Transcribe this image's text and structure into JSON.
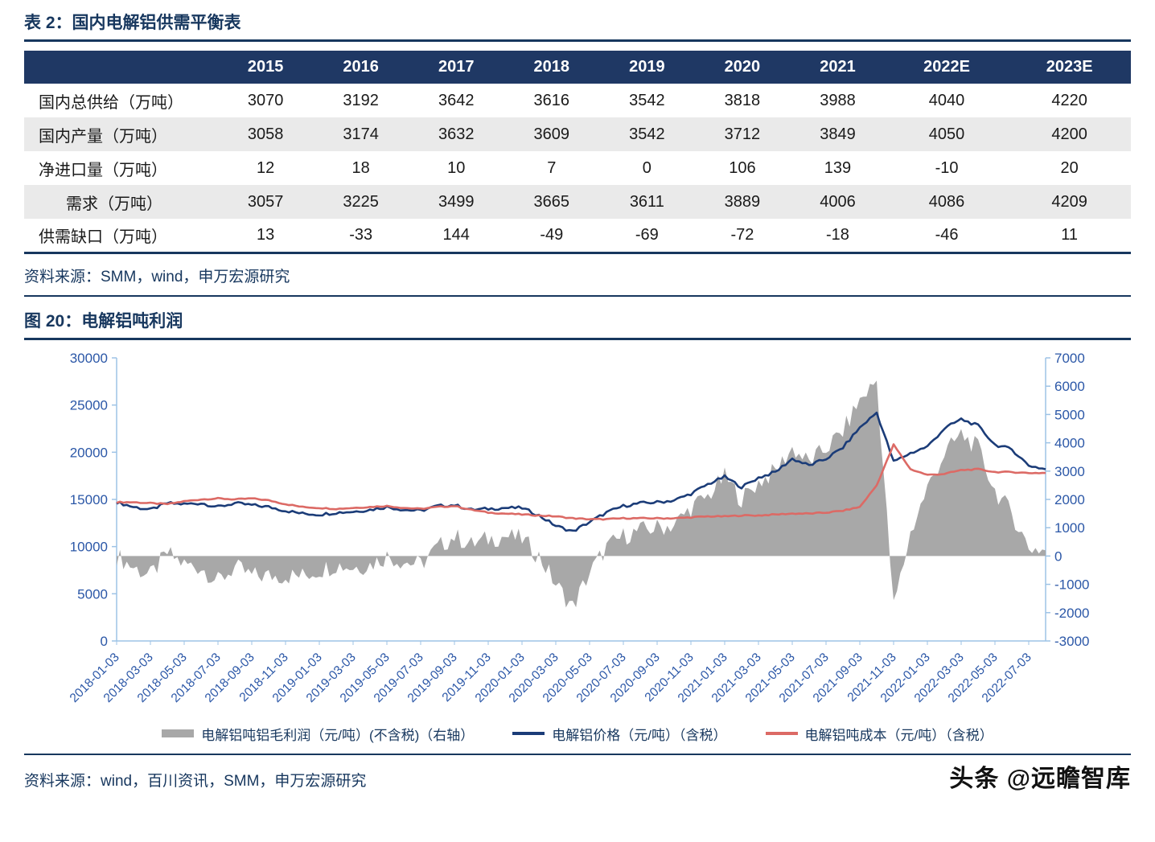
{
  "colors": {
    "navy": "#17375E",
    "header_bg": "#1F3864",
    "axis_blue": "#2B57A7",
    "axis_line": "#9DC3E6",
    "price_line": "#1B3C78",
    "cost_line": "#DC6A65",
    "profit_area": "#A8A8A8",
    "row_alt": "#EAEAEA"
  },
  "table": {
    "title": "表 2：国内电解铝供需平衡表",
    "columns": [
      "",
      "2015",
      "2016",
      "2017",
      "2018",
      "2019",
      "2020",
      "2021",
      "2022E",
      "2023E"
    ],
    "rows": [
      {
        "label": "国内总供给（万吨）",
        "indent": false,
        "values": [
          "3070",
          "3192",
          "3642",
          "3616",
          "3542",
          "3818",
          "3988",
          "4040",
          "4220"
        ]
      },
      {
        "label": "国内产量（万吨）",
        "indent": false,
        "values": [
          "3058",
          "3174",
          "3632",
          "3609",
          "3542",
          "3712",
          "3849",
          "4050",
          "4200"
        ]
      },
      {
        "label": "净进口量（万吨）",
        "indent": false,
        "values": [
          "12",
          "18",
          "10",
          "7",
          "0",
          "106",
          "139",
          "-10",
          "20"
        ]
      },
      {
        "label": "需求（万吨）",
        "indent": true,
        "values": [
          "3057",
          "3225",
          "3499",
          "3665",
          "3611",
          "3889",
          "4006",
          "4086",
          "4209"
        ]
      },
      {
        "label": "供需缺口（万吨）",
        "indent": false,
        "values": [
          "13",
          "-33",
          "144",
          "-49",
          "-69",
          "-72",
          "-18",
          "-46",
          "11"
        ]
      }
    ],
    "source": "资料来源：SMM，wind，申万宏源研究"
  },
  "figure": {
    "title": "图 20：电解铝吨利润",
    "source": "资料来源：wind，百川资讯，SMM，申万宏源研究"
  },
  "chart_data": {
    "type": "line",
    "title": "电解铝吨利润",
    "x_start": "2018-01",
    "x_end": "2022-08",
    "frequency": "monthly (values estimated from plot)",
    "left_axis": {
      "min": 0,
      "max": 30000,
      "ticks": [
        30000,
        25000,
        20000,
        15000,
        10000,
        5000,
        0
      ]
    },
    "right_axis": {
      "min": -3000,
      "max": 7000,
      "ticks": [
        7000,
        6000,
        5000,
        4000,
        3000,
        2000,
        1000,
        0,
        -1000,
        -2000,
        -3000
      ]
    },
    "x_tick_labels": [
      "2018-01-03",
      "2018-03-03",
      "2018-05-03",
      "2018-07-03",
      "2018-09-03",
      "2018-11-03",
      "2019-01-03",
      "2019-03-03",
      "2019-05-03",
      "2019-07-03",
      "2019-09-03",
      "2019-11-03",
      "2020-01-03",
      "2020-03-03",
      "2020-05-03",
      "2020-07-03",
      "2020-09-03",
      "2020-11-03",
      "2021-01-03",
      "2021-03-03",
      "2021-05-03",
      "2021-07-03",
      "2021-09-03",
      "2021-11-03",
      "2022-01-03",
      "2022-03-03",
      "2022-05-03",
      "2022-07-03"
    ],
    "legend_position": "bottom",
    "grid": false,
    "series": [
      {
        "name": "电解铝吨铝毛利润（元/吨）(不含税)（右轴）",
        "type": "area",
        "axis": "right",
        "color": "#A8A8A8",
        "noise": 350,
        "values": [
          0,
          -400,
          -700,
          100,
          -300,
          -400,
          -900,
          -400,
          -700,
          -700,
          -700,
          -700,
          -500,
          -300,
          -400,
          -300,
          0,
          -200,
          -300,
          300,
          700,
          400,
          600,
          700,
          600,
          0,
          -1000,
          -1800,
          -600,
          300,
          700,
          900,
          1000,
          1100,
          1700,
          2100,
          2800,
          2000,
          2600,
          3000,
          3800,
          3300,
          3800,
          4400,
          5500,
          6200,
          -1800,
          800,
          2400,
          3600,
          4300,
          3800,
          2300,
          1500,
          300,
          200
        ]
      },
      {
        "name": "电解铝价格（元/吨）（含税）",
        "type": "line",
        "axis": "left",
        "color": "#1B3C78",
        "noise": 160,
        "values": [
          14700,
          14200,
          13900,
          14600,
          14500,
          14600,
          14200,
          14600,
          14400,
          14200,
          13800,
          13500,
          13400,
          13600,
          13700,
          13900,
          14200,
          13900,
          13800,
          14300,
          14400,
          13900,
          14000,
          14100,
          14100,
          13300,
          12200,
          11600,
          12600,
          13600,
          14300,
          14600,
          14700,
          14900,
          15600,
          16600,
          17400,
          16300,
          17300,
          17900,
          19300,
          18600,
          19300,
          20500,
          22600,
          24200,
          19000,
          19900,
          20600,
          22500,
          23500,
          22800,
          20800,
          20300,
          18600,
          18200
        ]
      },
      {
        "name": "电解铝吨成本（元/吨）（含税）",
        "type": "line",
        "axis": "left",
        "color": "#DC6A65",
        "noise": 60,
        "values": [
          14700,
          14700,
          14600,
          14500,
          14800,
          15000,
          15100,
          15000,
          15100,
          14900,
          14500,
          14200,
          14100,
          14000,
          14100,
          14200,
          14300,
          14100,
          14000,
          14200,
          14300,
          13900,
          13600,
          13500,
          13400,
          13300,
          13200,
          13000,
          12900,
          12900,
          13000,
          13000,
          13000,
          13000,
          13100,
          13200,
          13200,
          13300,
          13300,
          13400,
          13500,
          13500,
          13600,
          13800,
          14200,
          16500,
          20800,
          18200,
          17600,
          17700,
          18100,
          18200,
          17900,
          17900,
          17800,
          17800
        ]
      }
    ]
  },
  "watermark": "头条 @远瞻智库"
}
